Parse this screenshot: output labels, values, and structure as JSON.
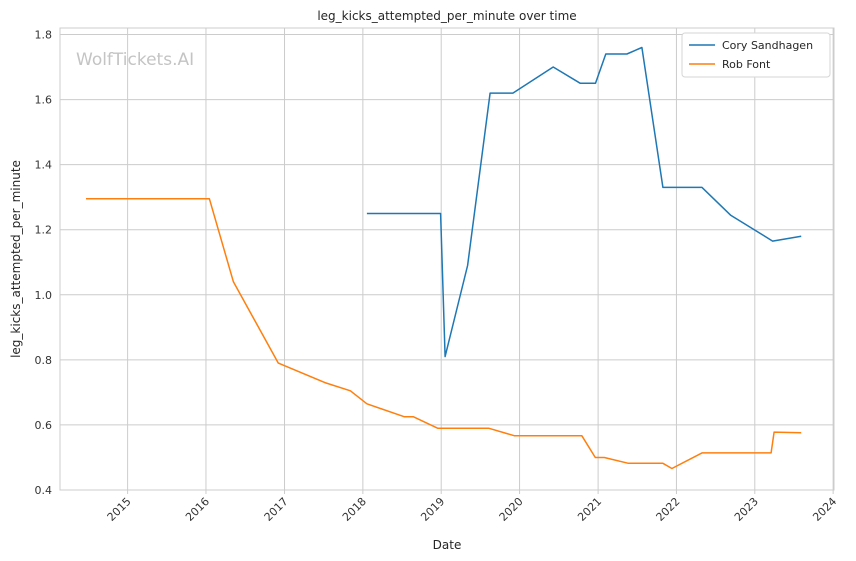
{
  "watermark": "WolfTickets.AI",
  "chart_data": {
    "type": "line",
    "title": "leg_kicks_attempted_per_minute over time",
    "xlabel": "Date",
    "ylabel": "leg_kicks_attempted_per_minute",
    "x_ticks": [
      "2015",
      "2016",
      "2017",
      "2018",
      "2019",
      "2020",
      "2021",
      "2022",
      "2023",
      "2024"
    ],
    "y_ticks": [
      "0.4",
      "0.6",
      "0.8",
      "1.0",
      "1.2",
      "1.4",
      "1.6",
      "1.8"
    ],
    "xlim": [
      "2014-02-20",
      "2024-01-05"
    ],
    "ylim": [
      0.4,
      1.82
    ],
    "grid": true,
    "legend_position": "top-right",
    "series": [
      {
        "name": "Cory Sandhagen",
        "color": "#1f77b4",
        "points": [
          {
            "x": "2018-01-20",
            "y": 1.25
          },
          {
            "x": "2018-12-29",
            "y": 1.25
          },
          {
            "x": "2019-01-19",
            "y": 0.81
          },
          {
            "x": "2019-05-04",
            "y": 1.09
          },
          {
            "x": "2019-08-17",
            "y": 1.62
          },
          {
            "x": "2019-12-01",
            "y": 1.62
          },
          {
            "x": "2020-06-06",
            "y": 1.7
          },
          {
            "x": "2020-10-10",
            "y": 1.65
          },
          {
            "x": "2020-12-20",
            "y": 1.65
          },
          {
            "x": "2021-02-06",
            "y": 1.74
          },
          {
            "x": "2021-05-15",
            "y": 1.74
          },
          {
            "x": "2021-07-24",
            "y": 1.76
          },
          {
            "x": "2021-10-30",
            "y": 1.33
          },
          {
            "x": "2022-04-30",
            "y": 1.33
          },
          {
            "x": "2022-09-10",
            "y": 1.245
          },
          {
            "x": "2023-03-25",
            "y": 1.165
          },
          {
            "x": "2023-08-05",
            "y": 1.18
          }
        ]
      },
      {
        "name": "Rob Font",
        "color": "#ff7f0e",
        "points": [
          {
            "x": "2014-06-21",
            "y": 1.295
          },
          {
            "x": "2016-01-17",
            "y": 1.295
          },
          {
            "x": "2016-05-08",
            "y": 1.04
          },
          {
            "x": "2016-12-03",
            "y": 0.79
          },
          {
            "x": "2017-07-08",
            "y": 0.73
          },
          {
            "x": "2017-11-04",
            "y": 0.705
          },
          {
            "x": "2018-01-20",
            "y": 0.665
          },
          {
            "x": "2018-07-14",
            "y": 0.625
          },
          {
            "x": "2018-08-25",
            "y": 0.625
          },
          {
            "x": "2018-12-15",
            "y": 0.59
          },
          {
            "x": "2019-08-10",
            "y": 0.59
          },
          {
            "x": "2019-12-07",
            "y": 0.567
          },
          {
            "x": "2020-10-17",
            "y": 0.567
          },
          {
            "x": "2020-12-19",
            "y": 0.5
          },
          {
            "x": "2021-01-30",
            "y": 0.5
          },
          {
            "x": "2021-05-22",
            "y": 0.482
          },
          {
            "x": "2021-10-30",
            "y": 0.482
          },
          {
            "x": "2021-12-11",
            "y": 0.466
          },
          {
            "x": "2022-04-30",
            "y": 0.514
          },
          {
            "x": "2023-03-18",
            "y": 0.514
          },
          {
            "x": "2023-04-01",
            "y": 0.578
          },
          {
            "x": "2023-08-05",
            "y": 0.576
          }
        ]
      }
    ]
  }
}
